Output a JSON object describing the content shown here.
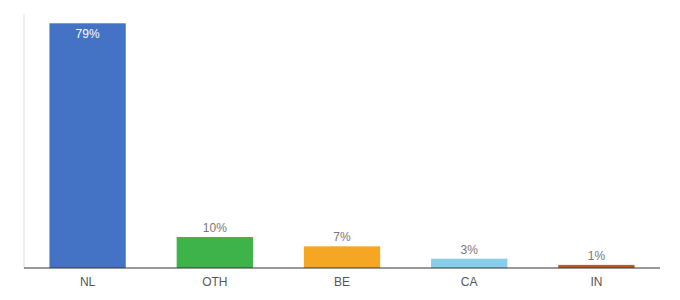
{
  "chart_data": {
    "type": "bar",
    "categories": [
      "NL",
      "OTH",
      "BE",
      "CA",
      "IN"
    ],
    "values": [
      79,
      10,
      7,
      3,
      1
    ],
    "value_labels": [
      "79%",
      "10%",
      "7%",
      "3%",
      "1%"
    ],
    "colors": [
      "#4472c4",
      "#3db34a",
      "#f5a623",
      "#87ceeb",
      "#b85c2a"
    ],
    "ylim": [
      0,
      82
    ],
    "grid": false,
    "data_labels": true,
    "tick_labels": "x"
  }
}
